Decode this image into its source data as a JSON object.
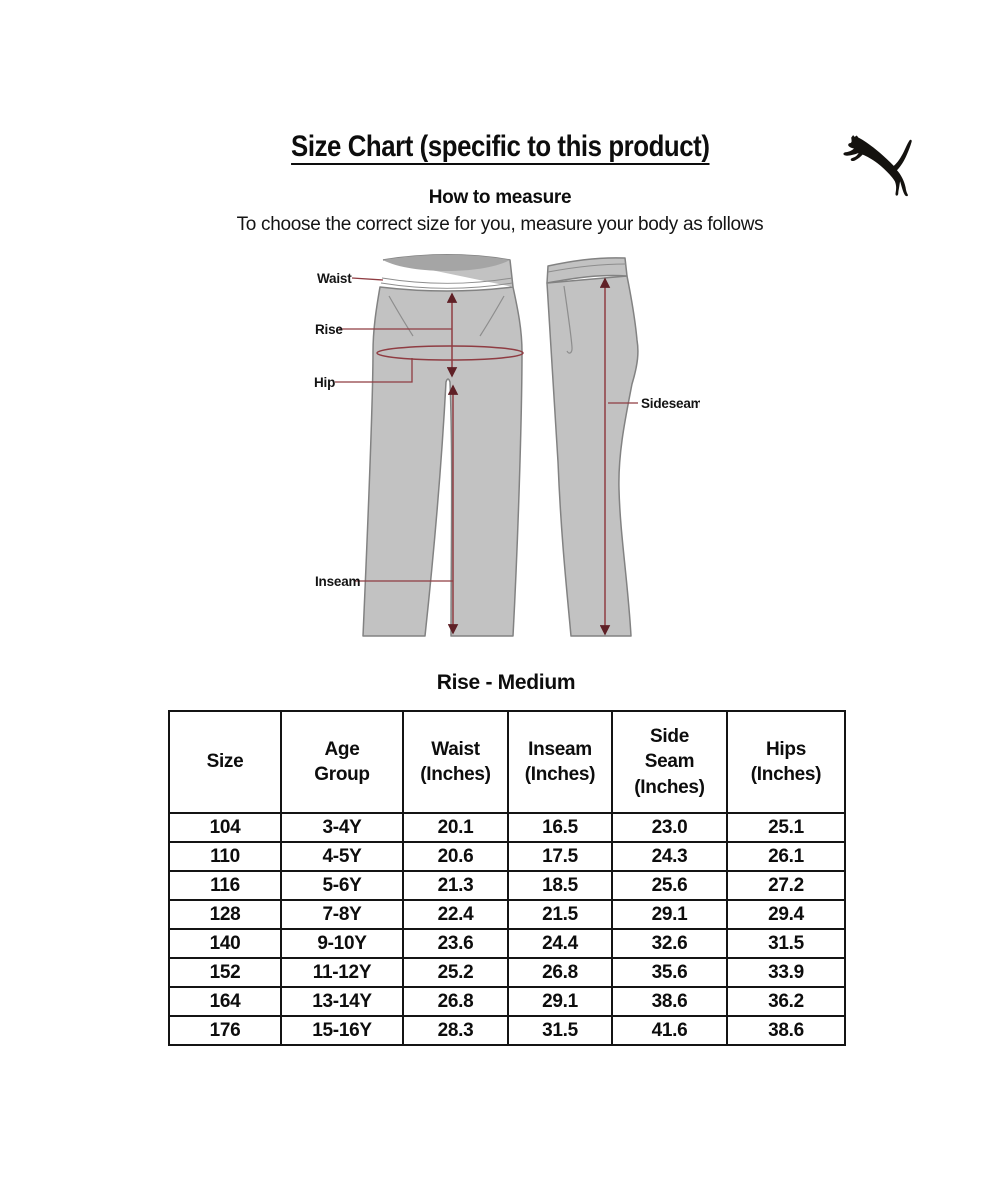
{
  "header": {
    "title": "Size Chart (specific to this product)",
    "logo_icon": "puma-leaping-cat"
  },
  "how_to_measure": {
    "heading": "How to measure",
    "subtitle": "To choose the correct size for you, measure your body as follows"
  },
  "diagram": {
    "labels": {
      "waist": "Waist",
      "rise": "Rise",
      "hip": "Hip",
      "inseam": "Inseam",
      "sideseam": "Sideseam"
    },
    "colors": {
      "measurement_line": "#8f3c42",
      "arrowhead": "#5f2026",
      "pants_fill": "#c2c2c2",
      "pants_outline": "#828282",
      "waistband_shadow": "#a5a5a5"
    }
  },
  "size_table": {
    "section_title": "Rise - Medium",
    "columns": [
      "Size",
      "Age Group",
      "Waist (Inches)",
      "Inseam (Inches)",
      "Side Seam (Inches)",
      "Hips (Inches)"
    ],
    "rows": [
      [
        "104",
        "3-4Y",
        "20.1",
        "16.5",
        "23.0",
        "25.1"
      ],
      [
        "110",
        "4-5Y",
        "20.6",
        "17.5",
        "24.3",
        "26.1"
      ],
      [
        "116",
        "5-6Y",
        "21.3",
        "18.5",
        "25.6",
        "27.2"
      ],
      [
        "128",
        "7-8Y",
        "22.4",
        "21.5",
        "29.1",
        "29.4"
      ],
      [
        "140",
        "9-10Y",
        "23.6",
        "24.4",
        "32.6",
        "31.5"
      ],
      [
        "152",
        "11-12Y",
        "25.2",
        "26.8",
        "35.6",
        "33.9"
      ],
      [
        "164",
        "13-14Y",
        "26.8",
        "29.1",
        "38.6",
        "36.2"
      ],
      [
        "176",
        "15-16Y",
        "28.3",
        "31.5",
        "41.6",
        "38.6"
      ]
    ]
  },
  "chart_data": {
    "type": "table",
    "title": "Rise - Medium",
    "columns": [
      "Size",
      "Age Group",
      "Waist (Inches)",
      "Inseam (Inches)",
      "Side Seam (Inches)",
      "Hips (Inches)"
    ],
    "rows": [
      [
        "104",
        "3-4Y",
        "20.1",
        "16.5",
        "23.0",
        "25.1"
      ],
      [
        "110",
        "4-5Y",
        "20.6",
        "17.5",
        "24.3",
        "26.1"
      ],
      [
        "116",
        "5-6Y",
        "21.3",
        "18.5",
        "25.6",
        "27.2"
      ],
      [
        "128",
        "7-8Y",
        "22.4",
        "21.5",
        "29.1",
        "29.4"
      ],
      [
        "140",
        "9-10Y",
        "23.6",
        "24.4",
        "32.6",
        "31.5"
      ],
      [
        "152",
        "11-12Y",
        "25.2",
        "26.8",
        "35.6",
        "33.9"
      ],
      [
        "164",
        "13-14Y",
        "26.8",
        "29.1",
        "38.6",
        "36.2"
      ],
      [
        "176",
        "15-16Y",
        "28.3",
        "31.5",
        "41.6",
        "38.6"
      ]
    ]
  }
}
